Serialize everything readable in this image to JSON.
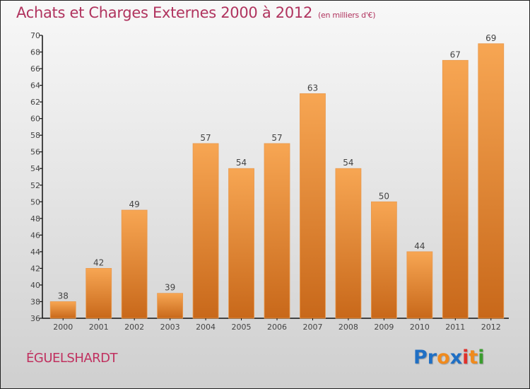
{
  "header": {
    "title": "Achats et Charges Externes 2000 à 2012",
    "unit": "(en milliers d'€)"
  },
  "footer": {
    "city": "ÉGUELSHARDT",
    "logo": {
      "letters": [
        {
          "ch": "P",
          "color": "#1f6fc4"
        },
        {
          "ch": "r",
          "color": "#1f6fc4"
        },
        {
          "ch": "o",
          "color": "#f08a1d"
        },
        {
          "ch": "x",
          "color": "#1f6fc4"
        },
        {
          "ch": "i",
          "color": "#e0302a"
        },
        {
          "ch": "t",
          "color": "#f08a1d"
        },
        {
          "ch": "i",
          "color": "#3a9c2e"
        }
      ]
    }
  },
  "colors": {
    "bar_top": "#f7a653",
    "bar_bottom": "#c8681a",
    "title": "#b0335e"
  },
  "chart_data": {
    "type": "bar",
    "title": "Achats et Charges Externes 2000 à 2012 (en milliers d'€)",
    "xlabel": "",
    "ylabel": "",
    "categories": [
      "2000",
      "2001",
      "2002",
      "2003",
      "2004",
      "2005",
      "2006",
      "2007",
      "2008",
      "2009",
      "2010",
      "2011",
      "2012"
    ],
    "values": [
      38,
      42,
      49,
      39,
      57,
      54,
      57,
      63,
      54,
      50,
      44,
      67,
      69
    ],
    "ylim": [
      36,
      70
    ],
    "yticks": [
      36,
      38,
      40,
      42,
      44,
      46,
      48,
      50,
      52,
      54,
      56,
      58,
      60,
      62,
      64,
      66,
      68,
      70
    ],
    "grid": false,
    "legend": "none"
  }
}
